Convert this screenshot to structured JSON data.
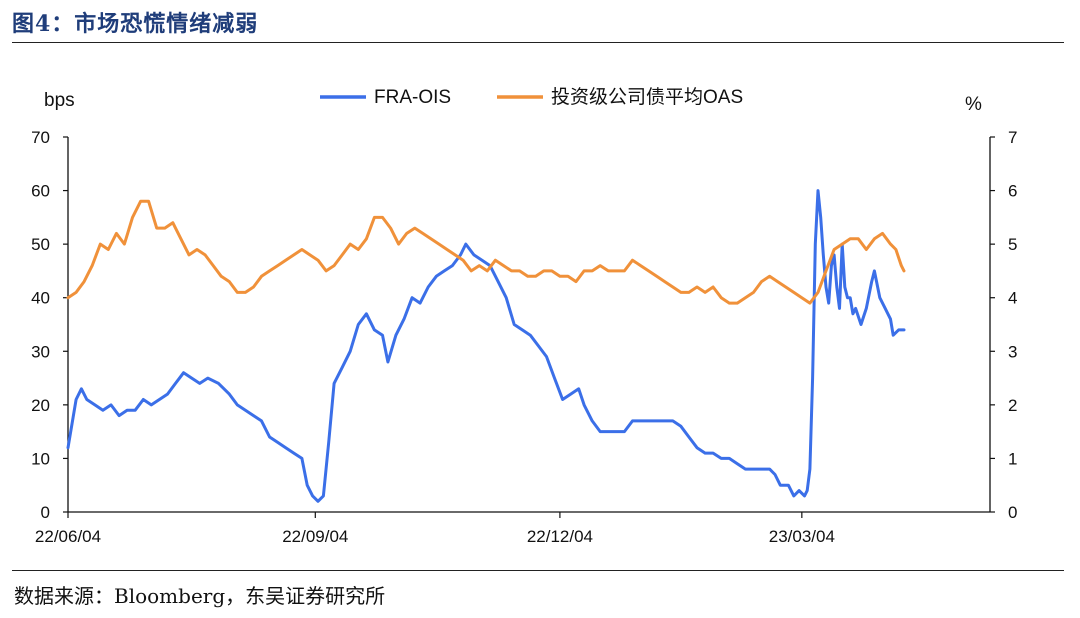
{
  "figure": {
    "title": "图4：市场恐慌情绪减弱",
    "source": "数据来源：Bloomberg，东吴证券研究所"
  },
  "chart_data": {
    "type": "line",
    "y_left_unit": "bps",
    "y_right_unit": "%",
    "ylim_left": [
      0,
      70
    ],
    "ylim_right": [
      0,
      7
    ],
    "yticks_left": [
      "0",
      "10",
      "20",
      "30",
      "40",
      "50",
      "60",
      "70"
    ],
    "yticks_right": [
      "0",
      "1",
      "2",
      "3",
      "4",
      "5",
      "6",
      "7"
    ],
    "x_ticks": [
      "22/06/04",
      "22/09/04",
      "22/12/04",
      "23/03/04"
    ],
    "x_range_days": [
      0,
      343
    ],
    "x_tick_days": [
      0,
      92,
      183,
      273
    ],
    "grid": false,
    "legend_position": "top",
    "series": [
      {
        "name": "FRA-OIS",
        "axis": "left",
        "color": "#3b6fe8",
        "points": [
          [
            0,
            12
          ],
          [
            3,
            21
          ],
          [
            5,
            23
          ],
          [
            7,
            21
          ],
          [
            10,
            20
          ],
          [
            13,
            19
          ],
          [
            16,
            20
          ],
          [
            19,
            18
          ],
          [
            22,
            19
          ],
          [
            25,
            19
          ],
          [
            28,
            21
          ],
          [
            31,
            20
          ],
          [
            34,
            21
          ],
          [
            37,
            22
          ],
          [
            40,
            24
          ],
          [
            43,
            26
          ],
          [
            46,
            25
          ],
          [
            49,
            24
          ],
          [
            52,
            25
          ],
          [
            56,
            24
          ],
          [
            60,
            22
          ],
          [
            63,
            20
          ],
          [
            66,
            19
          ],
          [
            69,
            18
          ],
          [
            72,
            17
          ],
          [
            75,
            14
          ],
          [
            78,
            13
          ],
          [
            81,
            12
          ],
          [
            84,
            11
          ],
          [
            87,
            10
          ],
          [
            89,
            5
          ],
          [
            91,
            3
          ],
          [
            93,
            2
          ],
          [
            95,
            3
          ],
          [
            97,
            13
          ],
          [
            99,
            24
          ],
          [
            102,
            27
          ],
          [
            105,
            30
          ],
          [
            108,
            35
          ],
          [
            111,
            37
          ],
          [
            114,
            34
          ],
          [
            117,
            33
          ],
          [
            119,
            28
          ],
          [
            122,
            33
          ],
          [
            125,
            36
          ],
          [
            128,
            40
          ],
          [
            131,
            39
          ],
          [
            134,
            42
          ],
          [
            137,
            44
          ],
          [
            140,
            45
          ],
          [
            143,
            46
          ],
          [
            146,
            48
          ],
          [
            148,
            50
          ],
          [
            151,
            48
          ],
          [
            154,
            47
          ],
          [
            157,
            46
          ],
          [
            160,
            43
          ],
          [
            163,
            40
          ],
          [
            166,
            35
          ],
          [
            169,
            34
          ],
          [
            172,
            33
          ],
          [
            175,
            31
          ],
          [
            178,
            29
          ],
          [
            181,
            25
          ],
          [
            184,
            21
          ],
          [
            187,
            22
          ],
          [
            190,
            23
          ],
          [
            192,
            20
          ],
          [
            195,
            17
          ],
          [
            198,
            15
          ],
          [
            201,
            15
          ],
          [
            204,
            15
          ],
          [
            207,
            15
          ],
          [
            210,
            17
          ],
          [
            213,
            17
          ],
          [
            216,
            17
          ],
          [
            219,
            17
          ],
          [
            222,
            17
          ],
          [
            225,
            17
          ],
          [
            228,
            16
          ],
          [
            231,
            14
          ],
          [
            234,
            12
          ],
          [
            237,
            11
          ],
          [
            240,
            11
          ],
          [
            243,
            10
          ],
          [
            246,
            10
          ],
          [
            249,
            9
          ],
          [
            252,
            8
          ],
          [
            255,
            8
          ],
          [
            258,
            8
          ],
          [
            261,
            8
          ],
          [
            263,
            7
          ],
          [
            265,
            5
          ],
          [
            268,
            5
          ],
          [
            270,
            3
          ],
          [
            272,
            4
          ],
          [
            274,
            3
          ],
          [
            275,
            4
          ],
          [
            276,
            8
          ],
          [
            277,
            25
          ],
          [
            278,
            50
          ],
          [
            279,
            60
          ],
          [
            280,
            55
          ],
          [
            281,
            48
          ],
          [
            282,
            42
          ],
          [
            283,
            39
          ],
          [
            284,
            46
          ],
          [
            285,
            48
          ],
          [
            286,
            42
          ],
          [
            287,
            38
          ],
          [
            288,
            50
          ],
          [
            289,
            42
          ],
          [
            290,
            40
          ],
          [
            291,
            40
          ],
          [
            292,
            37
          ],
          [
            293,
            38
          ],
          [
            295,
            35
          ],
          [
            297,
            38
          ],
          [
            299,
            43
          ],
          [
            300,
            45
          ],
          [
            302,
            40
          ],
          [
            304,
            38
          ],
          [
            306,
            36
          ],
          [
            307,
            33
          ],
          [
            309,
            34
          ],
          [
            311,
            34
          ]
        ]
      },
      {
        "name": "投资级公司债平均OAS",
        "axis": "right",
        "color": "#f0913a",
        "points": [
          [
            0,
            4.0
          ],
          [
            3,
            4.1
          ],
          [
            6,
            4.3
          ],
          [
            9,
            4.6
          ],
          [
            12,
            5.0
          ],
          [
            15,
            4.9
          ],
          [
            18,
            5.2
          ],
          [
            21,
            5.0
          ],
          [
            24,
            5.5
          ],
          [
            27,
            5.8
          ],
          [
            30,
            5.8
          ],
          [
            33,
            5.3
          ],
          [
            36,
            5.3
          ],
          [
            39,
            5.4
          ],
          [
            42,
            5.1
          ],
          [
            45,
            4.8
          ],
          [
            48,
            4.9
          ],
          [
            51,
            4.8
          ],
          [
            54,
            4.6
          ],
          [
            57,
            4.4
          ],
          [
            60,
            4.3
          ],
          [
            63,
            4.1
          ],
          [
            66,
            4.1
          ],
          [
            69,
            4.2
          ],
          [
            72,
            4.4
          ],
          [
            75,
            4.5
          ],
          [
            78,
            4.6
          ],
          [
            81,
            4.7
          ],
          [
            84,
            4.8
          ],
          [
            87,
            4.9
          ],
          [
            90,
            4.8
          ],
          [
            93,
            4.7
          ],
          [
            96,
            4.5
          ],
          [
            99,
            4.6
          ],
          [
            102,
            4.8
          ],
          [
            105,
            5.0
          ],
          [
            108,
            4.9
          ],
          [
            111,
            5.1
          ],
          [
            114,
            5.5
          ],
          [
            117,
            5.5
          ],
          [
            120,
            5.3
          ],
          [
            123,
            5.0
          ],
          [
            126,
            5.2
          ],
          [
            129,
            5.3
          ],
          [
            132,
            5.2
          ],
          [
            135,
            5.1
          ],
          [
            138,
            5.0
          ],
          [
            141,
            4.9
          ],
          [
            144,
            4.8
          ],
          [
            147,
            4.7
          ],
          [
            150,
            4.5
          ],
          [
            153,
            4.6
          ],
          [
            156,
            4.5
          ],
          [
            159,
            4.7
          ],
          [
            162,
            4.6
          ],
          [
            165,
            4.5
          ],
          [
            168,
            4.5
          ],
          [
            171,
            4.4
          ],
          [
            174,
            4.4
          ],
          [
            177,
            4.5
          ],
          [
            180,
            4.5
          ],
          [
            183,
            4.4
          ],
          [
            186,
            4.4
          ],
          [
            189,
            4.3
          ],
          [
            192,
            4.5
          ],
          [
            195,
            4.5
          ],
          [
            198,
            4.6
          ],
          [
            201,
            4.5
          ],
          [
            204,
            4.5
          ],
          [
            207,
            4.5
          ],
          [
            210,
            4.7
          ],
          [
            213,
            4.6
          ],
          [
            216,
            4.5
          ],
          [
            219,
            4.4
          ],
          [
            222,
            4.3
          ],
          [
            225,
            4.2
          ],
          [
            228,
            4.1
          ],
          [
            231,
            4.1
          ],
          [
            234,
            4.2
          ],
          [
            237,
            4.1
          ],
          [
            240,
            4.2
          ],
          [
            243,
            4.0
          ],
          [
            246,
            3.9
          ],
          [
            249,
            3.9
          ],
          [
            252,
            4.0
          ],
          [
            255,
            4.1
          ],
          [
            258,
            4.3
          ],
          [
            261,
            4.4
          ],
          [
            264,
            4.3
          ],
          [
            267,
            4.2
          ],
          [
            270,
            4.1
          ],
          [
            273,
            4.0
          ],
          [
            276,
            3.9
          ],
          [
            279,
            4.1
          ],
          [
            282,
            4.5
          ],
          [
            285,
            4.9
          ],
          [
            288,
            5.0
          ],
          [
            291,
            5.1
          ],
          [
            294,
            5.1
          ],
          [
            297,
            4.9
          ],
          [
            300,
            5.1
          ],
          [
            303,
            5.2
          ],
          [
            306,
            5.0
          ],
          [
            308,
            4.9
          ],
          [
            310,
            4.6
          ],
          [
            311,
            4.5
          ]
        ]
      }
    ]
  }
}
